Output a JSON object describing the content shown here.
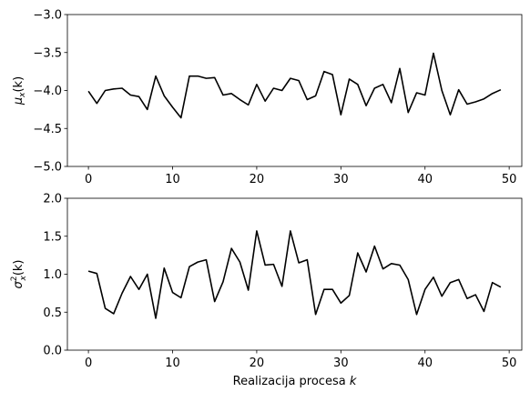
{
  "chart_data": [
    {
      "type": "line",
      "ylabel": "μx(k)",
      "ylabel_parts": {
        "base": "μ",
        "sub": "x",
        "rest": "(k)"
      },
      "xlabel": "",
      "xlim": [
        -2.5,
        51.5
      ],
      "ylim": [
        -5.0,
        -3.0
      ],
      "xticks": [
        0,
        10,
        20,
        30,
        40,
        50
      ],
      "yticks": [
        -5.0,
        -4.5,
        -4.0,
        -3.5,
        -3.0
      ],
      "ytick_labels": [
        "−5.0",
        "−4.5",
        "−4.0",
        "−3.5",
        "−3.0"
      ],
      "xtick_labels": [
        "0",
        "10",
        "20",
        "30",
        "40",
        "50"
      ],
      "grid": false,
      "line_color": "#000000",
      "x": [
        0,
        1,
        2,
        3,
        4,
        5,
        6,
        7,
        8,
        9,
        10,
        11,
        12,
        13,
        14,
        15,
        16,
        17,
        18,
        19,
        20,
        21,
        22,
        23,
        24,
        25,
        26,
        27,
        28,
        29,
        30,
        31,
        32,
        33,
        34,
        35,
        36,
        37,
        38,
        39,
        40,
        41,
        42,
        43,
        44,
        45,
        46,
        47,
        48,
        49
      ],
      "values": [
        -4.01,
        -4.17,
        -4.0,
        -3.98,
        -3.97,
        -4.06,
        -4.08,
        -4.25,
        -3.81,
        -4.07,
        -4.22,
        -4.36,
        -3.81,
        -3.81,
        -3.84,
        -3.83,
        -4.06,
        -4.04,
        -4.12,
        -4.19,
        -3.92,
        -4.14,
        -3.97,
        -4.0,
        -3.84,
        -3.87,
        -4.12,
        -4.07,
        -3.75,
        -3.79,
        -4.32,
        -3.85,
        -3.92,
        -4.2,
        -3.97,
        -3.92,
        -4.16,
        -3.71,
        -4.29,
        -4.03,
        -4.06,
        -3.51,
        -4.0,
        -4.32,
        -3.99,
        -4.18,
        -4.15,
        -4.11,
        -4.04,
        -3.99
      ]
    },
    {
      "type": "line",
      "ylabel": "σx²(k)",
      "ylabel_parts": {
        "base": "σ",
        "sub": "x",
        "sup": "2",
        "rest": "(k)"
      },
      "xlabel": "Realizacija procesa k",
      "xlabel_parts": {
        "text": "Realizacija procesa ",
        "italic": "k"
      },
      "xlim": [
        -2.5,
        51.5
      ],
      "ylim": [
        0.0,
        2.0
      ],
      "xticks": [
        0,
        10,
        20,
        30,
        40,
        50
      ],
      "yticks": [
        0.0,
        0.5,
        1.0,
        1.5,
        2.0
      ],
      "ytick_labels": [
        "0.0",
        "0.5",
        "1.0",
        "1.5",
        "2.0"
      ],
      "xtick_labels": [
        "0",
        "10",
        "20",
        "30",
        "40",
        "50"
      ],
      "grid": false,
      "line_color": "#000000",
      "x": [
        0,
        1,
        2,
        3,
        4,
        5,
        6,
        7,
        8,
        9,
        10,
        11,
        12,
        13,
        14,
        15,
        16,
        17,
        18,
        19,
        20,
        21,
        22,
        23,
        24,
        25,
        26,
        27,
        28,
        29,
        30,
        31,
        32,
        33,
        34,
        35,
        36,
        37,
        38,
        39,
        40,
        41,
        42,
        43,
        44,
        45,
        46,
        47,
        48,
        49
      ],
      "values": [
        1.04,
        1.01,
        0.55,
        0.48,
        0.75,
        0.97,
        0.8,
        1.0,
        0.42,
        1.08,
        0.76,
        0.69,
        1.1,
        1.16,
        1.19,
        0.64,
        0.9,
        1.34,
        1.16,
        0.79,
        1.57,
        1.12,
        1.13,
        0.84,
        1.57,
        1.15,
        1.19,
        0.47,
        0.8,
        0.8,
        0.62,
        0.72,
        1.28,
        1.03,
        1.37,
        1.07,
        1.14,
        1.12,
        0.93,
        0.47,
        0.8,
        0.96,
        0.71,
        0.89,
        0.93,
        0.68,
        0.73,
        0.51,
        0.89,
        0.83
      ]
    }
  ]
}
